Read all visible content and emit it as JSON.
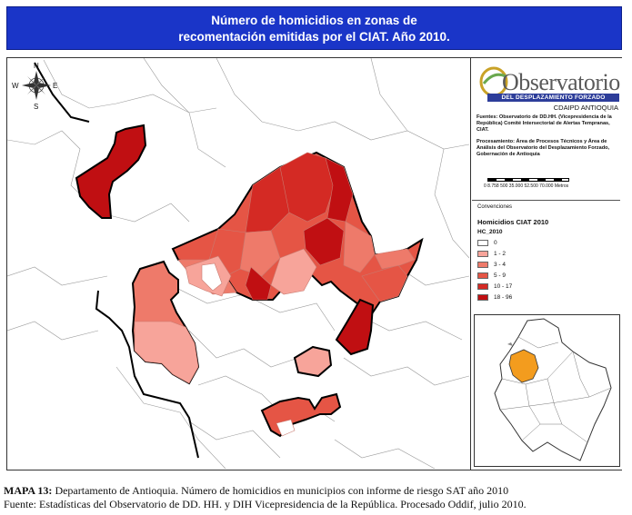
{
  "title": {
    "line1": "Número de homicidios en zonas de",
    "line2": "recomentación emitidas por el CIAT. Año 2010."
  },
  "compass": {
    "n": "N",
    "s": "S",
    "e": "E",
    "w": "W"
  },
  "logo": {
    "name": "Observatorio",
    "banner": "DEL DESPLAZAMIENTO FORZADO",
    "sub": "CDAIPD ANTIOQUIA"
  },
  "credits": {
    "fuentes": "Fuentes: Observatorio de DD.HH. (Vicepresidencia de la República) Comité Intersectorial de Alertas Tempranas, CIAT.",
    "procesamiento": "Procesamiento: Área de Procesos Técnicos y Área de Análisis del Observatorio del Desplazamiento Forzado, Gobernación de Antioquia"
  },
  "scale": {
    "label": "0 8.758 500 35.000 52.500 70.000",
    "unit": "Metros"
  },
  "legend": {
    "header": "Convenciones",
    "title": "Homicidios CIAT 2010",
    "field": "HC_2010",
    "items": [
      {
        "label": "0",
        "color": "#ffffff"
      },
      {
        "label": "1 - 2",
        "color": "#f7a49a"
      },
      {
        "label": "3 - 4",
        "color": "#ee7a6a"
      },
      {
        "label": "5 - 9",
        "color": "#e55545"
      },
      {
        "label": "10 - 17",
        "color": "#d42a24"
      },
      {
        "label": "18 - 96",
        "color": "#c00f12"
      }
    ]
  },
  "inset": {
    "highlight_color": "#f39c1e"
  },
  "caption": {
    "label": "MAPA 13:",
    "line1_text": " Departamento de Antioquia. Número de homicidios en municipios con informe de riesgo SAT año 2010",
    "line2": "Fuente: Estadísticas del Observatorio de DD. HH. y DIH Vicepresidencia de la República. Procesado Oddif, julio 2010."
  }
}
